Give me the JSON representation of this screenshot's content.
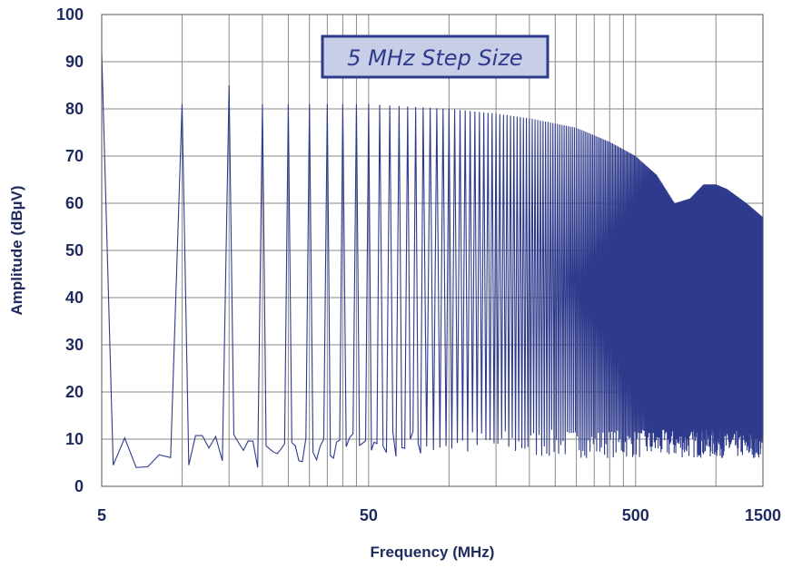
{
  "chart_data": {
    "type": "line",
    "badge": "5 MHz Step Size",
    "xlabel": "Frequency (MHz)",
    "ylabel": "Amplitude (dBµV)",
    "x_scale": "log",
    "xlim": [
      5,
      1500
    ],
    "ylim": [
      0,
      100
    ],
    "x_ticks": [
      5,
      50,
      500,
      1500
    ],
    "x_tick_labels": [
      "5",
      "50",
      "500",
      "1500"
    ],
    "y_ticks": [
      0,
      10,
      20,
      30,
      40,
      50,
      60,
      70,
      80,
      90,
      100
    ],
    "y_tick_labels": [
      "0",
      "10",
      "20",
      "30",
      "40",
      "50",
      "60",
      "70",
      "80",
      "90",
      "100"
    ],
    "grid": true,
    "vertical_gridlines_mhz": [
      10,
      15,
      20,
      25,
      30,
      35,
      40,
      45,
      50,
      100,
      150,
      200,
      250,
      300,
      350,
      400,
      450,
      500,
      1000
    ],
    "line_color": "#2e3a8c",
    "noise_floor_dbuv": 5,
    "series": [
      {
        "values": "harmonic peaks every 5 MHz",
        "envelope": [
          [
            5,
            92
          ],
          [
            10,
            81
          ],
          [
            15,
            85
          ],
          [
            20,
            81
          ],
          [
            25,
            81
          ],
          [
            30,
            81
          ],
          [
            35,
            81
          ],
          [
            40,
            81
          ],
          [
            50,
            81
          ],
          [
            100,
            80
          ],
          [
            150,
            79
          ],
          [
            200,
            78
          ],
          [
            300,
            76
          ],
          [
            400,
            73
          ],
          [
            500,
            70
          ],
          [
            600,
            66
          ],
          [
            700,
            60
          ],
          [
            800,
            61
          ],
          [
            900,
            64
          ],
          [
            1000,
            64
          ],
          [
            1100,
            63
          ],
          [
            1300,
            60
          ],
          [
            1500,
            57
          ]
        ],
        "low_freq_floor": [
          [
            5.3,
            10
          ],
          [
            5.6,
            6
          ],
          [
            6,
            9
          ],
          [
            6.5,
            4
          ],
          [
            7,
            6
          ],
          [
            7.5,
            5
          ],
          [
            8,
            6
          ],
          [
            8.5,
            4
          ],
          [
            9.3,
            6
          ],
          [
            10.7,
            5
          ],
          [
            11.5,
            10
          ],
          [
            12.5,
            8
          ],
          [
            13.3,
            10
          ],
          [
            14.3,
            5
          ],
          [
            15.8,
            10
          ],
          [
            16.8,
            8
          ],
          [
            18.5,
            9
          ],
          [
            19.3,
            4
          ],
          [
            21,
            8
          ],
          [
            22.5,
            6
          ],
          [
            23.5,
            9
          ],
          [
            26,
            8
          ],
          [
            27.5,
            5
          ],
          [
            29,
            9
          ],
          [
            31,
            6
          ],
          [
            33,
            9
          ],
          [
            36,
            7
          ],
          [
            38,
            10
          ],
          [
            42,
            9
          ],
          [
            44,
            11
          ],
          [
            47,
            8
          ],
          [
            48,
            11
          ]
        ]
      }
    ]
  }
}
